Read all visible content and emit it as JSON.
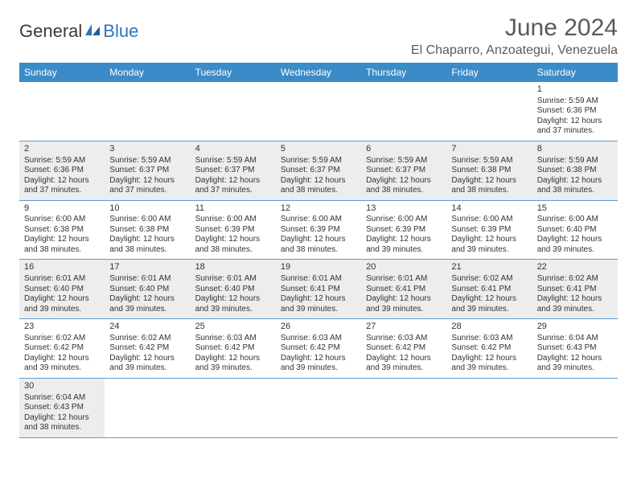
{
  "logo": {
    "text1": "General",
    "text2": "Blue"
  },
  "title": "June 2024",
  "location": "El Chaparro, Anzoategui, Venezuela",
  "colors": {
    "header_bg": "#3b8bc9",
    "header_text": "#ffffff",
    "row_alt_bg": "#ededed",
    "row_border": "#5b9bd5",
    "title_color": "#5a5a5a",
    "logo_gray": "#3a3a3a",
    "logo_blue": "#2e75b6"
  },
  "day_headers": [
    "Sunday",
    "Monday",
    "Tuesday",
    "Wednesday",
    "Thursday",
    "Friday",
    "Saturday"
  ],
  "weeks": [
    [
      null,
      null,
      null,
      null,
      null,
      null,
      {
        "n": "1",
        "sr": "Sunrise: 5:59 AM",
        "ss": "Sunset: 6:36 PM",
        "d1": "Daylight: 12 hours",
        "d2": "and 37 minutes."
      }
    ],
    [
      {
        "n": "2",
        "sr": "Sunrise: 5:59 AM",
        "ss": "Sunset: 6:36 PM",
        "d1": "Daylight: 12 hours",
        "d2": "and 37 minutes."
      },
      {
        "n": "3",
        "sr": "Sunrise: 5:59 AM",
        "ss": "Sunset: 6:37 PM",
        "d1": "Daylight: 12 hours",
        "d2": "and 37 minutes."
      },
      {
        "n": "4",
        "sr": "Sunrise: 5:59 AM",
        "ss": "Sunset: 6:37 PM",
        "d1": "Daylight: 12 hours",
        "d2": "and 37 minutes."
      },
      {
        "n": "5",
        "sr": "Sunrise: 5:59 AM",
        "ss": "Sunset: 6:37 PM",
        "d1": "Daylight: 12 hours",
        "d2": "and 38 minutes."
      },
      {
        "n": "6",
        "sr": "Sunrise: 5:59 AM",
        "ss": "Sunset: 6:37 PM",
        "d1": "Daylight: 12 hours",
        "d2": "and 38 minutes."
      },
      {
        "n": "7",
        "sr": "Sunrise: 5:59 AM",
        "ss": "Sunset: 6:38 PM",
        "d1": "Daylight: 12 hours",
        "d2": "and 38 minutes."
      },
      {
        "n": "8",
        "sr": "Sunrise: 5:59 AM",
        "ss": "Sunset: 6:38 PM",
        "d1": "Daylight: 12 hours",
        "d2": "and 38 minutes."
      }
    ],
    [
      {
        "n": "9",
        "sr": "Sunrise: 6:00 AM",
        "ss": "Sunset: 6:38 PM",
        "d1": "Daylight: 12 hours",
        "d2": "and 38 minutes."
      },
      {
        "n": "10",
        "sr": "Sunrise: 6:00 AM",
        "ss": "Sunset: 6:38 PM",
        "d1": "Daylight: 12 hours",
        "d2": "and 38 minutes."
      },
      {
        "n": "11",
        "sr": "Sunrise: 6:00 AM",
        "ss": "Sunset: 6:39 PM",
        "d1": "Daylight: 12 hours",
        "d2": "and 38 minutes."
      },
      {
        "n": "12",
        "sr": "Sunrise: 6:00 AM",
        "ss": "Sunset: 6:39 PM",
        "d1": "Daylight: 12 hours",
        "d2": "and 38 minutes."
      },
      {
        "n": "13",
        "sr": "Sunrise: 6:00 AM",
        "ss": "Sunset: 6:39 PM",
        "d1": "Daylight: 12 hours",
        "d2": "and 39 minutes."
      },
      {
        "n": "14",
        "sr": "Sunrise: 6:00 AM",
        "ss": "Sunset: 6:39 PM",
        "d1": "Daylight: 12 hours",
        "d2": "and 39 minutes."
      },
      {
        "n": "15",
        "sr": "Sunrise: 6:00 AM",
        "ss": "Sunset: 6:40 PM",
        "d1": "Daylight: 12 hours",
        "d2": "and 39 minutes."
      }
    ],
    [
      {
        "n": "16",
        "sr": "Sunrise: 6:01 AM",
        "ss": "Sunset: 6:40 PM",
        "d1": "Daylight: 12 hours",
        "d2": "and 39 minutes."
      },
      {
        "n": "17",
        "sr": "Sunrise: 6:01 AM",
        "ss": "Sunset: 6:40 PM",
        "d1": "Daylight: 12 hours",
        "d2": "and 39 minutes."
      },
      {
        "n": "18",
        "sr": "Sunrise: 6:01 AM",
        "ss": "Sunset: 6:40 PM",
        "d1": "Daylight: 12 hours",
        "d2": "and 39 minutes."
      },
      {
        "n": "19",
        "sr": "Sunrise: 6:01 AM",
        "ss": "Sunset: 6:41 PM",
        "d1": "Daylight: 12 hours",
        "d2": "and 39 minutes."
      },
      {
        "n": "20",
        "sr": "Sunrise: 6:01 AM",
        "ss": "Sunset: 6:41 PM",
        "d1": "Daylight: 12 hours",
        "d2": "and 39 minutes."
      },
      {
        "n": "21",
        "sr": "Sunrise: 6:02 AM",
        "ss": "Sunset: 6:41 PM",
        "d1": "Daylight: 12 hours",
        "d2": "and 39 minutes."
      },
      {
        "n": "22",
        "sr": "Sunrise: 6:02 AM",
        "ss": "Sunset: 6:41 PM",
        "d1": "Daylight: 12 hours",
        "d2": "and 39 minutes."
      }
    ],
    [
      {
        "n": "23",
        "sr": "Sunrise: 6:02 AM",
        "ss": "Sunset: 6:42 PM",
        "d1": "Daylight: 12 hours",
        "d2": "and 39 minutes."
      },
      {
        "n": "24",
        "sr": "Sunrise: 6:02 AM",
        "ss": "Sunset: 6:42 PM",
        "d1": "Daylight: 12 hours",
        "d2": "and 39 minutes."
      },
      {
        "n": "25",
        "sr": "Sunrise: 6:03 AM",
        "ss": "Sunset: 6:42 PM",
        "d1": "Daylight: 12 hours",
        "d2": "and 39 minutes."
      },
      {
        "n": "26",
        "sr": "Sunrise: 6:03 AM",
        "ss": "Sunset: 6:42 PM",
        "d1": "Daylight: 12 hours",
        "d2": "and 39 minutes."
      },
      {
        "n": "27",
        "sr": "Sunrise: 6:03 AM",
        "ss": "Sunset: 6:42 PM",
        "d1": "Daylight: 12 hours",
        "d2": "and 39 minutes."
      },
      {
        "n": "28",
        "sr": "Sunrise: 6:03 AM",
        "ss": "Sunset: 6:42 PM",
        "d1": "Daylight: 12 hours",
        "d2": "and 39 minutes."
      },
      {
        "n": "29",
        "sr": "Sunrise: 6:04 AM",
        "ss": "Sunset: 6:43 PM",
        "d1": "Daylight: 12 hours",
        "d2": "and 39 minutes."
      }
    ],
    [
      {
        "n": "30",
        "sr": "Sunrise: 6:04 AM",
        "ss": "Sunset: 6:43 PM",
        "d1": "Daylight: 12 hours",
        "d2": "and 38 minutes."
      },
      null,
      null,
      null,
      null,
      null,
      null
    ]
  ]
}
